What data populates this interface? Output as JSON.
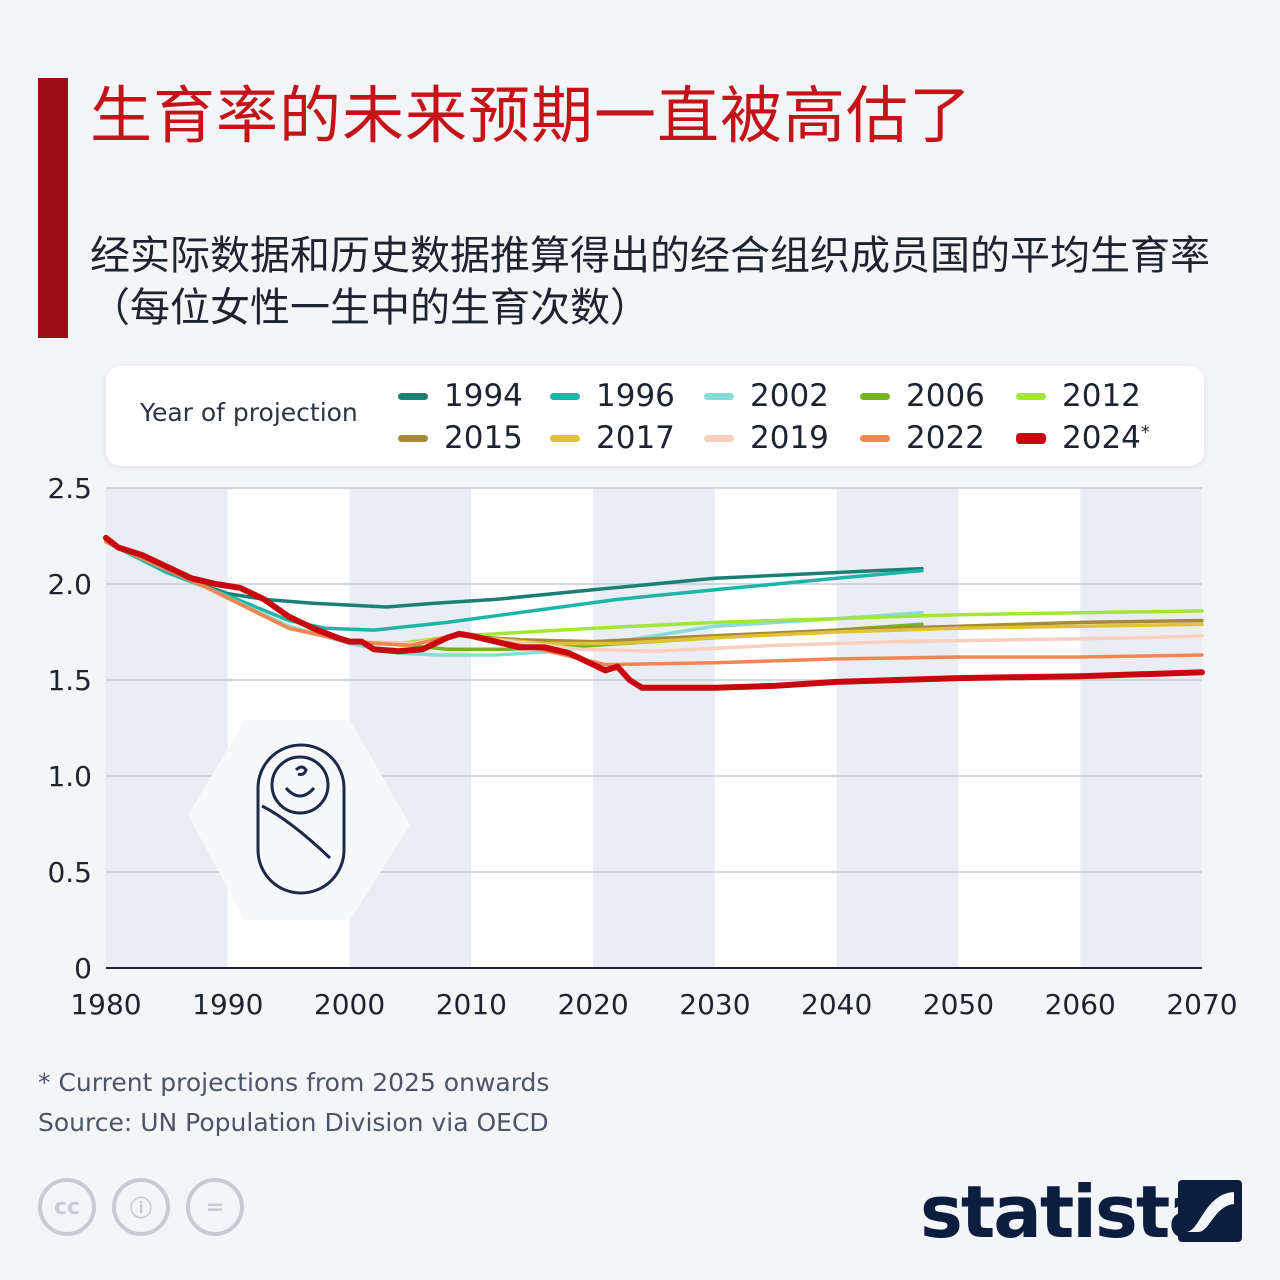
{
  "header": {
    "title": "生育率的未来预期一直被高估了",
    "subtitle": "经实际数据和历史数据推算得出的经合组织成员国的平均生育率（每位女性一生中的生育次数）"
  },
  "legend": {
    "title": "Year of projection",
    "items": [
      {
        "label": "1994",
        "color": "#1b7f74"
      },
      {
        "label": "1996",
        "color": "#1bb5aa"
      },
      {
        "label": "2002",
        "color": "#86dcd8"
      },
      {
        "label": "2006",
        "color": "#74b51e"
      },
      {
        "label": "2012",
        "color": "#a3e635"
      },
      {
        "label": "2015",
        "color": "#a68a3a"
      },
      {
        "label": "2017",
        "color": "#e0c234"
      },
      {
        "label": "2019",
        "color": "#f7cfbc"
      },
      {
        "label": "2022",
        "color": "#f28552"
      },
      {
        "label": "2024",
        "color": "#c8080e",
        "superscript": "*"
      }
    ]
  },
  "chart_data": {
    "type": "line",
    "title": "生育率的未来预期一直被高估了",
    "xlabel": "",
    "ylabel": "",
    "xlim": [
      1980,
      2070
    ],
    "ylim": [
      0,
      2.5
    ],
    "x_ticks": [
      "1980",
      "1990",
      "2000",
      "2010",
      "2020",
      "2030",
      "2040",
      "2050",
      "2060",
      "2070"
    ],
    "y_ticks": [
      "0",
      "0.5",
      "1.0",
      "1.5",
      "2.0",
      "2.5"
    ],
    "series": [
      {
        "name": "1994",
        "color": "#1b7f74",
        "points": [
          [
            1980,
            2.22
          ],
          [
            1985,
            2.06
          ],
          [
            1990,
            1.95
          ],
          [
            1993,
            1.92
          ],
          [
            1997,
            1.9
          ],
          [
            2000,
            1.89
          ],
          [
            2003,
            1.88
          ],
          [
            2007,
            1.9
          ],
          [
            2012,
            1.92
          ],
          [
            2020,
            1.97
          ],
          [
            2030,
            2.03
          ],
          [
            2040,
            2.06
          ],
          [
            2047,
            2.08
          ]
        ]
      },
      {
        "name": "1996",
        "color": "#1bb5aa",
        "points": [
          [
            1980,
            2.22
          ],
          [
            1985,
            2.06
          ],
          [
            1990,
            1.94
          ],
          [
            1995,
            1.81
          ],
          [
            1998,
            1.77
          ],
          [
            2002,
            1.76
          ],
          [
            2008,
            1.8
          ],
          [
            2015,
            1.86
          ],
          [
            2022,
            1.92
          ],
          [
            2030,
            1.97
          ],
          [
            2040,
            2.03
          ],
          [
            2047,
            2.07
          ]
        ]
      },
      {
        "name": "2002",
        "color": "#86dcd8",
        "points": [
          [
            1980,
            2.22
          ],
          [
            1988,
            1.99
          ],
          [
            1995,
            1.78
          ],
          [
            2000,
            1.69
          ],
          [
            2004,
            1.64
          ],
          [
            2007,
            1.63
          ],
          [
            2012,
            1.63
          ],
          [
            2017,
            1.65
          ],
          [
            2022,
            1.7
          ],
          [
            2030,
            1.78
          ],
          [
            2040,
            1.82
          ],
          [
            2047,
            1.85
          ]
        ]
      },
      {
        "name": "2006",
        "color": "#74b51e",
        "points": [
          [
            1980,
            2.22
          ],
          [
            1988,
            1.99
          ],
          [
            1995,
            1.77
          ],
          [
            2000,
            1.7
          ],
          [
            2005,
            1.68
          ],
          [
            2008,
            1.66
          ],
          [
            2013,
            1.66
          ],
          [
            2020,
            1.68
          ],
          [
            2030,
            1.72
          ],
          [
            2040,
            1.76
          ],
          [
            2047,
            1.79
          ]
        ]
      },
      {
        "name": "2012",
        "color": "#a3e635",
        "points": [
          [
            1980,
            2.22
          ],
          [
            1988,
            1.99
          ],
          [
            1995,
            1.77
          ],
          [
            2000,
            1.7
          ],
          [
            2004,
            1.69
          ],
          [
            2009,
            1.73
          ],
          [
            2012,
            1.74
          ],
          [
            2020,
            1.77
          ],
          [
            2030,
            1.8
          ],
          [
            2040,
            1.82
          ],
          [
            2050,
            1.84
          ],
          [
            2060,
            1.85
          ],
          [
            2070,
            1.86
          ]
        ]
      },
      {
        "name": "2015",
        "color": "#a68a3a",
        "points": [
          [
            1980,
            2.22
          ],
          [
            1988,
            1.99
          ],
          [
            1995,
            1.77
          ],
          [
            2000,
            1.7
          ],
          [
            2005,
            1.69
          ],
          [
            2009,
            1.73
          ],
          [
            2014,
            1.71
          ],
          [
            2020,
            1.7
          ],
          [
            2030,
            1.73
          ],
          [
            2040,
            1.76
          ],
          [
            2050,
            1.78
          ],
          [
            2060,
            1.8
          ],
          [
            2070,
            1.81
          ]
        ]
      },
      {
        "name": "2017",
        "color": "#e0c234",
        "points": [
          [
            1980,
            2.22
          ],
          [
            1988,
            1.99
          ],
          [
            1995,
            1.77
          ],
          [
            2000,
            1.7
          ],
          [
            2005,
            1.69
          ],
          [
            2009,
            1.73
          ],
          [
            2016,
            1.69
          ],
          [
            2022,
            1.69
          ],
          [
            2030,
            1.72
          ],
          [
            2040,
            1.75
          ],
          [
            2050,
            1.77
          ],
          [
            2060,
            1.78
          ],
          [
            2070,
            1.79
          ]
        ]
      },
      {
        "name": "2019",
        "color": "#f7cfbc",
        "points": [
          [
            1980,
            2.22
          ],
          [
            1988,
            1.99
          ],
          [
            1995,
            1.77
          ],
          [
            2000,
            1.7
          ],
          [
            2005,
            1.69
          ],
          [
            2009,
            1.73
          ],
          [
            2016,
            1.68
          ],
          [
            2019,
            1.66
          ],
          [
            2025,
            1.65
          ],
          [
            2035,
            1.68
          ],
          [
            2045,
            1.7
          ],
          [
            2055,
            1.71
          ],
          [
            2065,
            1.72
          ],
          [
            2070,
            1.73
          ]
        ]
      },
      {
        "name": "2022",
        "color": "#f28552",
        "points": [
          [
            1980,
            2.22
          ],
          [
            1988,
            1.99
          ],
          [
            1995,
            1.77
          ],
          [
            2000,
            1.7
          ],
          [
            2005,
            1.68
          ],
          [
            2009,
            1.74
          ],
          [
            2015,
            1.67
          ],
          [
            2019,
            1.61
          ],
          [
            2021,
            1.58
          ],
          [
            2030,
            1.59
          ],
          [
            2040,
            1.61
          ],
          [
            2050,
            1.62
          ],
          [
            2060,
            1.62
          ],
          [
            2070,
            1.63
          ]
        ]
      },
      {
        "name": "2024",
        "color": "#c8080e",
        "points": [
          [
            1980,
            2.24
          ],
          [
            1981,
            2.19
          ],
          [
            1983,
            2.15
          ],
          [
            1985,
            2.09
          ],
          [
            1987,
            2.03
          ],
          [
            1989,
            2.0
          ],
          [
            1991,
            1.98
          ],
          [
            1993,
            1.92
          ],
          [
            1995,
            1.83
          ],
          [
            1997,
            1.77
          ],
          [
            1999,
            1.72
          ],
          [
            2000,
            1.7
          ],
          [
            2001,
            1.7
          ],
          [
            2002,
            1.66
          ],
          [
            2004,
            1.65
          ],
          [
            2006,
            1.66
          ],
          [
            2008,
            1.72
          ],
          [
            2009,
            1.74
          ],
          [
            2010,
            1.73
          ],
          [
            2012,
            1.7
          ],
          [
            2014,
            1.67
          ],
          [
            2016,
            1.67
          ],
          [
            2018,
            1.64
          ],
          [
            2020,
            1.58
          ],
          [
            2021,
            1.55
          ],
          [
            2022,
            1.57
          ],
          [
            2023,
            1.5
          ],
          [
            2024,
            1.46
          ],
          [
            2030,
            1.46
          ],
          [
            2035,
            1.47
          ],
          [
            2040,
            1.49
          ],
          [
            2050,
            1.51
          ],
          [
            2060,
            1.52
          ],
          [
            2070,
            1.54
          ]
        ]
      }
    ]
  },
  "footer": {
    "footnote": "* Current projections from 2025 onwards",
    "source": "Source: UN Population Division via OECD",
    "logo": "statista",
    "license_icons": [
      "cc",
      "ⓘ",
      "="
    ]
  }
}
